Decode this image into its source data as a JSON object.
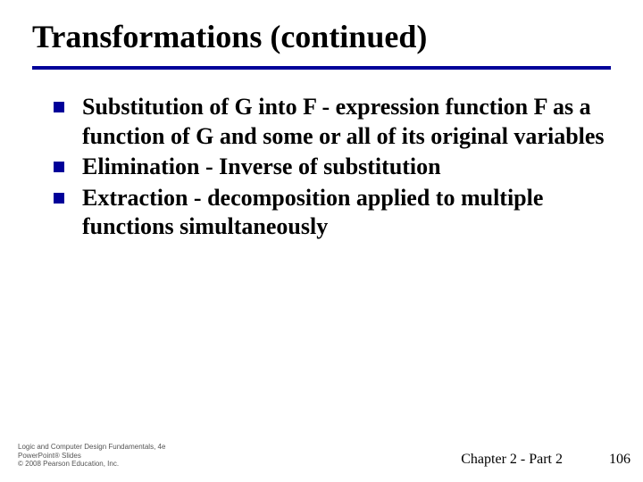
{
  "title": "Transformations (continued)",
  "bullets": [
    {
      "lead": "Substitution of G into F",
      "rest": " - expression function F as a function of G and some or all of its original variables"
    },
    {
      "lead": "Elimination",
      "rest": " - Inverse of substitution"
    },
    {
      "lead": "Extraction",
      "rest": " - decomposition applied to multiple functions simultaneously"
    }
  ],
  "footer": {
    "credit_line1": "Logic and Computer Design Fundamentals, 4e",
    "credit_line2": "PowerPoint® Slides",
    "credit_line3": "© 2008 Pearson Education, Inc.",
    "chapter": "Chapter 2 - Part 2",
    "page": "106"
  },
  "colors": {
    "rule": "#000099",
    "bullet": "#000099",
    "text": "#000000",
    "background": "#ffffff"
  },
  "typography": {
    "title_fontsize": 36,
    "body_fontsize": 26,
    "font_family": "Times New Roman"
  }
}
